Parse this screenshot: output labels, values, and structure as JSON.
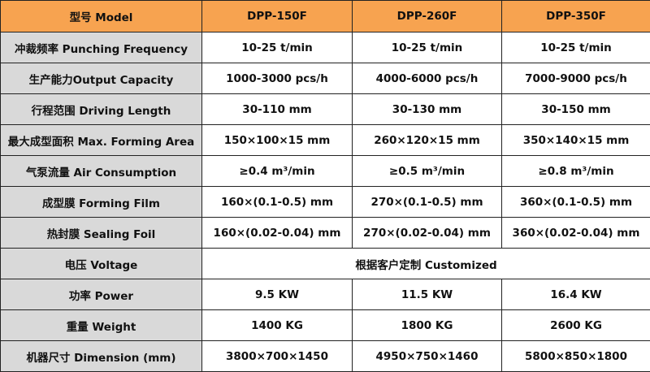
{
  "table": {
    "header": [
      "型号 Model",
      "DPP-150F",
      "DPP-260F",
      "DPP-350F"
    ],
    "rows": [
      [
        "冲裁频率 Punching Frequency",
        "10-25 t/min",
        "10-25 t/min",
        "10-25 t/min"
      ],
      [
        "生产能力Output Capacity",
        "1000-3000 pcs/h",
        "4000-6000 pcs/h",
        "7000-9000 pcs/h"
      ],
      [
        "行程范围 Driving Length",
        "30-110 mm",
        "30-130 mm",
        "30-150 mm"
      ],
      [
        "最大成型面积 Max. Forming Area",
        "150×100×15 mm",
        "260×120×15 mm",
        "350×140×15 mm"
      ],
      [
        "气泵流量 Air Consumption",
        "≥0.4 m³/min",
        "≥0.5 m³/min",
        "≥0.8 m³/min"
      ],
      [
        "成型膜 Forming Film",
        "160×(0.1-0.5) mm",
        "270×(0.1-0.5) mm",
        "360×(0.1-0.5) mm"
      ],
      [
        "热封膜 Sealing Foil",
        "160×(0.02-0.04) mm",
        "270×(0.02-0.04) mm",
        "360×(0.02-0.04) mm"
      ],
      [
        "电压 Voltage",
        "根据客户定制 Customized"
      ],
      [
        "功率 Power",
        "9.5 KW",
        "11.5 KW",
        "16.4 KW"
      ],
      [
        "重量 Weight",
        "1400 KG",
        "1800 KG",
        "2600 KG"
      ],
      [
        "机器尺寸 Dimension (mm)",
        "3800×700×1450",
        "4950×750×1460",
        "5800×850×1800"
      ]
    ]
  }
}
